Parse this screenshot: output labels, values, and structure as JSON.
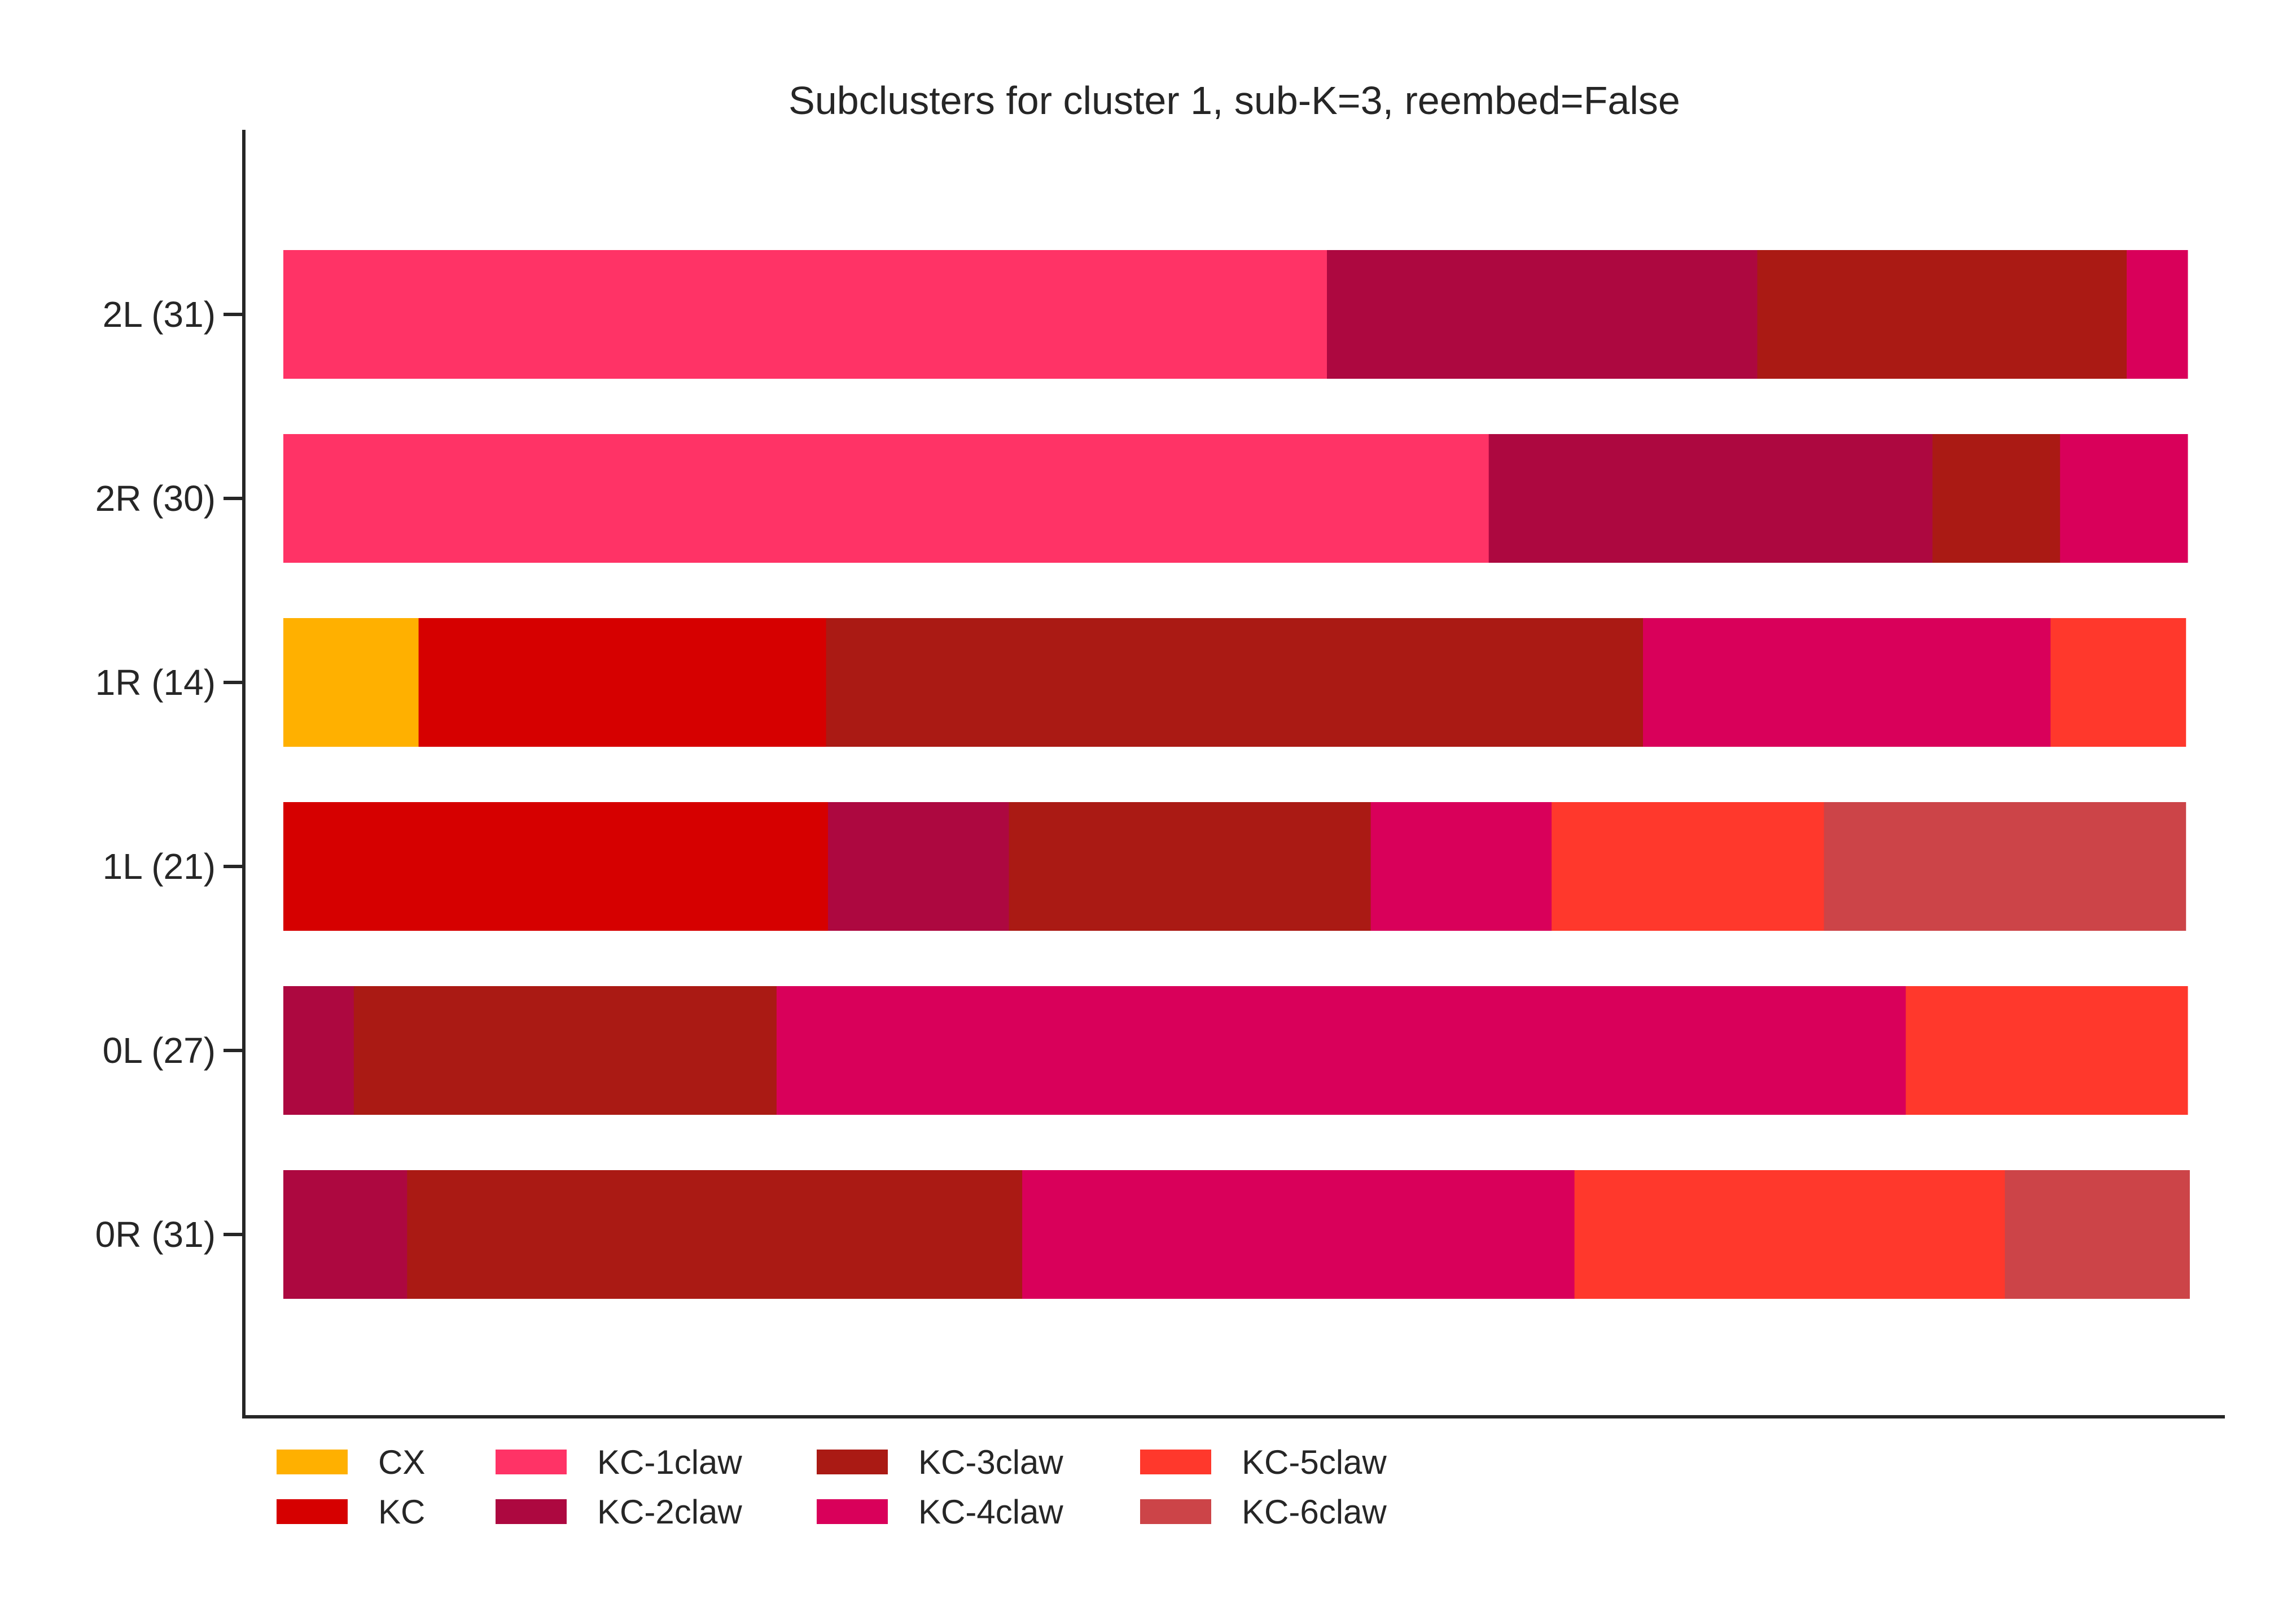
{
  "chart_data": {
    "type": "bar",
    "orientation": "horizontal",
    "stacked": true,
    "normalized": true,
    "title": "Subclusters for cluster 1, sub-K=3, reembed=False",
    "xlabel": "",
    "ylabel": "",
    "xlim": [
      0,
      1
    ],
    "grid": false,
    "legend_position": "bottom-left",
    "categories": [
      "2L (31)",
      "2R (30)",
      "1R (14)",
      "1L (21)",
      "0L (27)",
      "0R (31)"
    ],
    "series": [
      {
        "name": "CX",
        "color": "#FFB000",
        "values": [
          0,
          0,
          0.071,
          0,
          0,
          0
        ]
      },
      {
        "name": "KC",
        "color": "#D60000",
        "values": [
          0,
          0,
          0.214,
          0.286,
          0,
          0
        ]
      },
      {
        "name": "KC-1claw",
        "color": "#FF3366",
        "values": [
          0.548,
          0.633,
          0,
          0,
          0,
          0
        ]
      },
      {
        "name": "KC-2claw",
        "color": "#AD0840",
        "values": [
          0.226,
          0.233,
          0,
          0.095,
          0.037,
          0.065
        ]
      },
      {
        "name": "KC-3claw",
        "color": "#AA1A14",
        "values": [
          0.194,
          0.067,
          0.429,
          0.19,
          0.222,
          0.323
        ]
      },
      {
        "name": "KC-4claw",
        "color": "#D9005A",
        "values": [
          0.032,
          0.067,
          0.214,
          0.095,
          0.593,
          0.29
        ]
      },
      {
        "name": "KC-5claw",
        "color": "#FF382C",
        "values": [
          0,
          0,
          0.071,
          0.143,
          0.148,
          0.226
        ]
      },
      {
        "name": "KC-6claw",
        "color": "#CC4448",
        "values": [
          0,
          0,
          0,
          0.19,
          0,
          0.097
        ]
      }
    ]
  }
}
